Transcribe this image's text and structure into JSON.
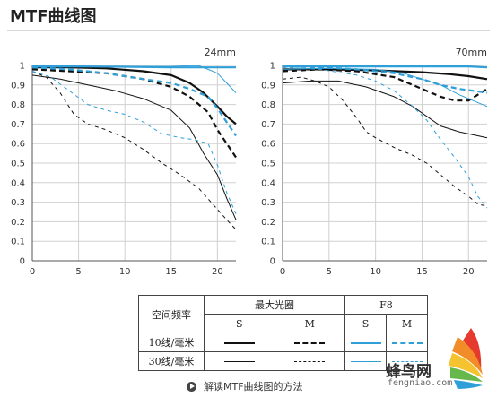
{
  "page": {
    "title": "MTF曲线图"
  },
  "colors": {
    "black": "#111111",
    "blue": "#2f9fd8",
    "grid": "#d0d0d0",
    "axis": "#555555"
  },
  "chart_data": [
    {
      "type": "line",
      "title": "24mm",
      "xlim": [
        0,
        22
      ],
      "ylim": [
        0,
        1
      ],
      "xticks": [
        0,
        5,
        10,
        15,
        20
      ],
      "yticks": [
        0,
        0.1,
        0.2,
        0.3,
        0.4,
        0.5,
        0.6,
        0.7,
        0.8,
        0.9,
        1
      ],
      "ytick_labels": [
        "0",
        "0.1",
        "0.2",
        "0.3",
        "0.4",
        "0.5",
        "0.6",
        "0.7",
        "0.8",
        "0.9",
        "1"
      ],
      "grid": true,
      "series": [
        {
          "color": "black",
          "width": 2.2,
          "dash": "solid",
          "x": [
            0,
            4,
            8,
            12,
            15,
            17,
            18.5,
            20,
            21,
            22
          ],
          "y": [
            0.99,
            0.99,
            0.985,
            0.97,
            0.95,
            0.91,
            0.86,
            0.79,
            0.74,
            0.7
          ]
        },
        {
          "color": "black",
          "width": 2.2,
          "dash": "dashed",
          "x": [
            0,
            4,
            8,
            12,
            15,
            17,
            19,
            20,
            21,
            22
          ],
          "y": [
            0.98,
            0.97,
            0.96,
            0.93,
            0.89,
            0.84,
            0.76,
            0.67,
            0.6,
            0.53
          ]
        },
        {
          "color": "blue",
          "width": 2.2,
          "dash": "solid",
          "x": [
            0,
            5,
            10,
            15,
            18,
            20,
            22
          ],
          "y": [
            0.995,
            0.995,
            0.993,
            0.99,
            0.99,
            0.99,
            0.99
          ]
        },
        {
          "color": "blue",
          "width": 2.2,
          "dash": "dashed",
          "x": [
            0,
            4,
            8,
            12,
            15,
            17,
            19,
            20,
            21,
            22
          ],
          "y": [
            0.99,
            0.98,
            0.96,
            0.93,
            0.91,
            0.88,
            0.84,
            0.78,
            0.71,
            0.64
          ]
        },
        {
          "color": "black",
          "width": 1,
          "dash": "solid",
          "x": [
            0,
            3,
            6,
            9,
            12,
            15,
            17,
            18.5,
            20,
            21,
            22
          ],
          "y": [
            0.95,
            0.93,
            0.9,
            0.87,
            0.83,
            0.77,
            0.68,
            0.55,
            0.44,
            0.32,
            0.21
          ]
        },
        {
          "color": "black",
          "width": 1,
          "dash": "dashed",
          "x": [
            0,
            1.5,
            3,
            4.5,
            6,
            8,
            10,
            12,
            14,
            16,
            18,
            19.5,
            21,
            22
          ],
          "y": [
            0.97,
            0.94,
            0.86,
            0.75,
            0.7,
            0.67,
            0.63,
            0.57,
            0.5,
            0.44,
            0.37,
            0.29,
            0.21,
            0.16
          ]
        },
        {
          "color": "blue",
          "width": 1,
          "dash": "solid",
          "x": [
            0,
            5,
            10,
            15,
            17,
            18,
            19,
            20,
            21,
            22
          ],
          "y": [
            0.995,
            0.995,
            0.995,
            0.995,
            0.998,
            0.998,
            0.98,
            0.96,
            0.91,
            0.86
          ]
        },
        {
          "color": "blue",
          "width": 1,
          "dash": "dashed",
          "x": [
            0,
            2,
            4,
            6,
            8,
            10,
            12,
            14,
            16,
            17.5,
            19,
            20,
            21,
            22
          ],
          "y": [
            0.97,
            0.94,
            0.87,
            0.8,
            0.77,
            0.75,
            0.71,
            0.65,
            0.63,
            0.62,
            0.6,
            0.49,
            0.35,
            0.24
          ]
        }
      ]
    },
    {
      "type": "line",
      "title": "70mm",
      "xlim": [
        0,
        22
      ],
      "ylim": [
        0,
        1
      ],
      "xticks": [
        0,
        5,
        10,
        15,
        20
      ],
      "yticks": [
        0,
        0.1,
        0.2,
        0.3,
        0.4,
        0.5,
        0.6,
        0.7,
        0.8,
        0.9,
        1
      ],
      "ytick_labels": [
        "0",
        "0.1",
        "0.2",
        "0.3",
        "0.4",
        "0.5",
        "0.6",
        "0.7",
        "0.8",
        "0.9",
        "1"
      ],
      "grid": true,
      "series": [
        {
          "color": "black",
          "width": 2.2,
          "dash": "solid",
          "x": [
            0,
            5,
            10,
            15,
            18,
            20,
            22
          ],
          "y": [
            0.98,
            0.98,
            0.975,
            0.965,
            0.955,
            0.945,
            0.93
          ]
        },
        {
          "color": "black",
          "width": 2.2,
          "dash": "dashed",
          "x": [
            0,
            4,
            8,
            12,
            15,
            17,
            18.5,
            20,
            21,
            22
          ],
          "y": [
            0.97,
            0.98,
            0.97,
            0.94,
            0.88,
            0.84,
            0.82,
            0.82,
            0.85,
            0.88
          ]
        },
        {
          "color": "blue",
          "width": 2.2,
          "dash": "solid",
          "x": [
            0,
            5,
            10,
            15,
            20,
            22
          ],
          "y": [
            0.995,
            0.995,
            0.995,
            0.995,
            0.995,
            0.99
          ]
        },
        {
          "color": "blue",
          "width": 2.2,
          "dash": "dashed",
          "x": [
            0,
            4,
            8,
            12,
            15,
            17,
            19,
            20.5,
            22
          ],
          "y": [
            0.995,
            0.99,
            0.98,
            0.96,
            0.93,
            0.9,
            0.88,
            0.87,
            0.86
          ]
        },
        {
          "color": "black",
          "width": 1,
          "dash": "solid",
          "x": [
            0,
            3,
            6,
            9,
            12,
            14,
            15.5,
            17,
            19,
            21,
            22
          ],
          "y": [
            0.91,
            0.92,
            0.92,
            0.89,
            0.84,
            0.79,
            0.74,
            0.69,
            0.66,
            0.64,
            0.63
          ]
        },
        {
          "color": "black",
          "width": 1,
          "dash": "dashed",
          "x": [
            0,
            2,
            3.5,
            5,
            6.5,
            8,
            9,
            10,
            12,
            14,
            15.5,
            17,
            18.5,
            20,
            21,
            22
          ],
          "y": [
            0.93,
            0.94,
            0.92,
            0.89,
            0.82,
            0.73,
            0.66,
            0.63,
            0.58,
            0.54,
            0.5,
            0.44,
            0.38,
            0.33,
            0.29,
            0.28
          ]
        },
        {
          "color": "blue",
          "width": 1,
          "dash": "solid",
          "x": [
            0,
            5,
            10,
            13,
            15,
            17,
            19,
            20,
            21,
            22
          ],
          "y": [
            0.98,
            0.985,
            0.98,
            0.96,
            0.93,
            0.9,
            0.85,
            0.83,
            0.81,
            0.79
          ]
        },
        {
          "color": "blue",
          "width": 1,
          "dash": "dashed",
          "x": [
            0,
            4,
            8,
            10,
            12,
            14,
            15.5,
            17,
            18.5,
            20,
            21,
            22
          ],
          "y": [
            0.99,
            0.98,
            0.95,
            0.92,
            0.87,
            0.79,
            0.72,
            0.62,
            0.53,
            0.43,
            0.33,
            0.27
          ]
        }
      ]
    }
  ],
  "legend": {
    "row_header": "空间频率",
    "groups": [
      "最大光圈",
      "F8"
    ],
    "cols": [
      "S",
      "M",
      "S",
      "M"
    ],
    "rows": [
      {
        "label": "10线/毫米",
        "weight": "thick"
      },
      {
        "label": "30线/毫米",
        "weight": "thin"
      }
    ]
  },
  "guide_link": {
    "label": "解读MTF曲线图的方法"
  },
  "watermark": {
    "brand": "蜂鸟网",
    "domain": "fengniao.com"
  }
}
